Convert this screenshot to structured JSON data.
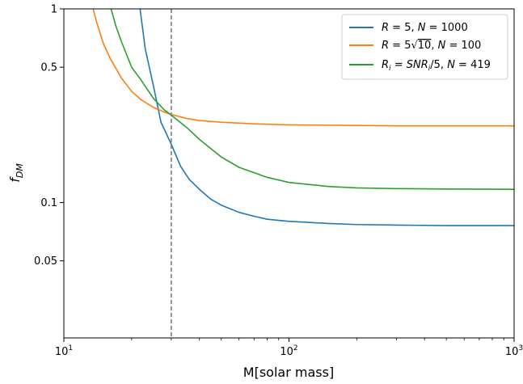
{
  "chart_data": {
    "type": "line",
    "xlabel": "M[solar mass]",
    "ylabel": "f",
    "ylabel_sub": "DM",
    "xscale": "log",
    "yscale": "log",
    "xlim": [
      10,
      1000
    ],
    "ylim": [
      0.02,
      1
    ],
    "x_tick_labels": [
      {
        "base": "10",
        "exp": "1"
      },
      {
        "base": "10",
        "exp": "2"
      },
      {
        "base": "10",
        "exp": "3"
      }
    ],
    "y_ticks": [
      1,
      0.5,
      0.1,
      0.05
    ],
    "y_tick_labels": [
      "1",
      "0.5",
      "0.1",
      "0.05"
    ],
    "grid": false,
    "legend_position": "top-right",
    "vline": {
      "x": 30,
      "color": "#7f7f7f",
      "style": "dashed"
    },
    "series": [
      {
        "name": "R = 5, N = 1000",
        "color": "#1f77b4",
        "x": [
          21.8,
          23,
          25,
          27,
          30,
          33,
          36,
          40,
          45,
          50,
          60,
          70,
          80,
          100,
          150,
          200,
          300,
          500,
          1000
        ],
        "y": [
          1.0,
          0.62,
          0.4,
          0.26,
          0.2,
          0.154,
          0.132,
          0.117,
          0.104,
          0.097,
          0.089,
          0.085,
          0.082,
          0.08,
          0.078,
          0.077,
          0.0765,
          0.076,
          0.076
        ]
      },
      {
        "name": "R = 5√10, N = 100",
        "color": "#ff7f0e",
        "x": [
          13.5,
          14,
          15,
          16,
          18,
          20,
          22,
          25,
          28,
          30,
          35,
          40,
          50,
          70,
          100,
          200,
          300,
          500,
          1000
        ],
        "y": [
          1.0,
          0.85,
          0.66,
          0.56,
          0.44,
          0.375,
          0.34,
          0.31,
          0.293,
          0.285,
          0.272,
          0.265,
          0.26,
          0.255,
          0.252,
          0.25,
          0.249,
          0.249,
          0.249
        ]
      },
      {
        "name": "R_i = SNR_i/5, N = 419",
        "color": "#2ca02c",
        "x": [
          16.2,
          17,
          18,
          20,
          22,
          25,
          28,
          30,
          35,
          40,
          50,
          60,
          80,
          100,
          150,
          200,
          300,
          500,
          1000
        ],
        "y": [
          1.0,
          0.82,
          0.68,
          0.5,
          0.43,
          0.345,
          0.3,
          0.283,
          0.245,
          0.212,
          0.172,
          0.152,
          0.135,
          0.127,
          0.121,
          0.119,
          0.118,
          0.1175,
          0.117
        ]
      }
    ],
    "legend_entries": [
      {
        "parts": [
          [
            "R",
            "it"
          ],
          [
            " = 5, ",
            ""
          ],
          [
            "N",
            "it"
          ],
          [
            " = 1000",
            ""
          ]
        ]
      },
      {
        "parts": [
          [
            "R",
            "it"
          ],
          [
            " = 5",
            ""
          ],
          [
            "√",
            ""
          ],
          [
            "10",
            "over"
          ],
          [
            ", ",
            ""
          ],
          [
            "N",
            "it"
          ],
          [
            " = 100",
            ""
          ]
        ]
      },
      {
        "parts": [
          [
            "R",
            "it"
          ],
          [
            "i",
            "sub"
          ],
          [
            " = ",
            ""
          ],
          [
            "SNR",
            "it"
          ],
          [
            "i",
            "sub"
          ],
          [
            "/5, ",
            ""
          ],
          [
            "N",
            "it"
          ],
          [
            " = 419",
            ""
          ]
        ]
      }
    ]
  }
}
